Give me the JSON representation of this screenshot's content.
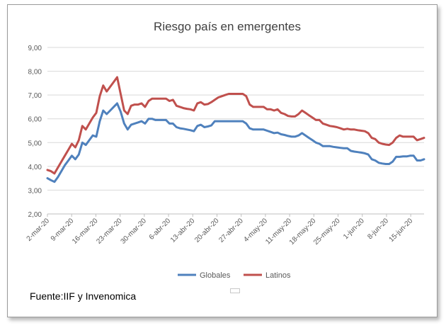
{
  "colors": {
    "globales": "#4f81bd",
    "latinos": "#c0504d",
    "grid": "#d9d9d9",
    "text": "#595959"
  },
  "source_text": "Fuente:IIF y Invenomica",
  "chart_data": {
    "type": "line",
    "title": "Riesgo país en emergentes",
    "xlabel": "",
    "ylabel": "",
    "ylim": [
      2,
      9
    ],
    "yticks": [
      "2,00",
      "3,00",
      "4,00",
      "5,00",
      "6,00",
      "7,00",
      "8,00",
      "9,00"
    ],
    "xtick_labels": [
      "2-mar-20",
      "9-mar-20",
      "16-mar-20",
      "23-mar-20",
      "30-mar-20",
      "6-abr-20",
      "13-abr-20",
      "20-abr-20",
      "27-abr-20",
      "4-may-20",
      "11-may-20",
      "18-may-20",
      "25-may-20",
      "1-jun-20",
      "8-jun-20",
      "15-jun-20"
    ],
    "grid": true,
    "legend": "bottom",
    "series": [
      {
        "name": "Globales",
        "values": [
          3.5,
          3.42,
          3.35,
          3.55,
          3.8,
          4.05,
          4.25,
          4.45,
          4.3,
          4.5,
          5.0,
          4.9,
          5.1,
          5.3,
          5.25,
          5.9,
          6.35,
          6.2,
          6.35,
          6.5,
          6.65,
          6.3,
          5.8,
          5.55,
          5.75,
          5.8,
          5.85,
          5.9,
          5.8,
          6.0,
          6.0,
          5.95,
          5.95,
          5.95,
          5.95,
          5.8,
          5.8,
          5.65,
          5.6,
          5.58,
          5.55,
          5.52,
          5.48,
          5.7,
          5.75,
          5.65,
          5.68,
          5.72,
          5.9,
          5.9,
          5.9,
          5.9,
          5.9,
          5.9,
          5.9,
          5.9,
          5.9,
          5.8,
          5.6,
          5.55,
          5.55,
          5.55,
          5.55,
          5.5,
          5.45,
          5.4,
          5.42,
          5.35,
          5.32,
          5.28,
          5.25,
          5.25,
          5.3,
          5.4,
          5.3,
          5.2,
          5.1,
          5.0,
          4.95,
          4.85,
          4.85,
          4.85,
          4.82,
          4.8,
          4.78,
          4.76,
          4.76,
          4.65,
          4.62,
          4.6,
          4.58,
          4.55,
          4.5,
          4.3,
          4.25,
          4.15,
          4.12,
          4.1,
          4.1,
          4.2,
          4.4,
          4.4,
          4.42,
          4.42,
          4.45,
          4.45,
          4.25,
          4.25,
          4.3
        ]
      },
      {
        "name": "Latinos",
        "values": [
          3.85,
          3.8,
          3.7,
          3.95,
          4.2,
          4.45,
          4.7,
          4.95,
          4.8,
          5.1,
          5.7,
          5.55,
          5.8,
          6.05,
          6.25,
          6.95,
          7.4,
          7.15,
          7.35,
          7.55,
          7.75,
          7.05,
          6.35,
          6.2,
          6.55,
          6.6,
          6.6,
          6.65,
          6.5,
          6.75,
          6.85,
          6.85,
          6.85,
          6.85,
          6.85,
          6.75,
          6.8,
          6.55,
          6.5,
          6.45,
          6.42,
          6.4,
          6.35,
          6.65,
          6.7,
          6.6,
          6.62,
          6.7,
          6.8,
          6.9,
          6.95,
          7.0,
          7.05,
          7.05,
          7.05,
          7.05,
          7.05,
          6.95,
          6.6,
          6.5,
          6.5,
          6.5,
          6.5,
          6.4,
          6.4,
          6.35,
          6.4,
          6.25,
          6.2,
          6.12,
          6.1,
          6.1,
          6.2,
          6.35,
          6.25,
          6.15,
          6.05,
          5.95,
          5.95,
          5.8,
          5.75,
          5.7,
          5.68,
          5.65,
          5.6,
          5.55,
          5.58,
          5.55,
          5.55,
          5.52,
          5.5,
          5.48,
          5.4,
          5.2,
          5.15,
          5.0,
          4.95,
          4.92,
          4.9,
          5.0,
          5.2,
          5.3,
          5.25,
          5.25,
          5.25,
          5.25,
          5.1,
          5.15,
          5.2
        ]
      }
    ]
  }
}
